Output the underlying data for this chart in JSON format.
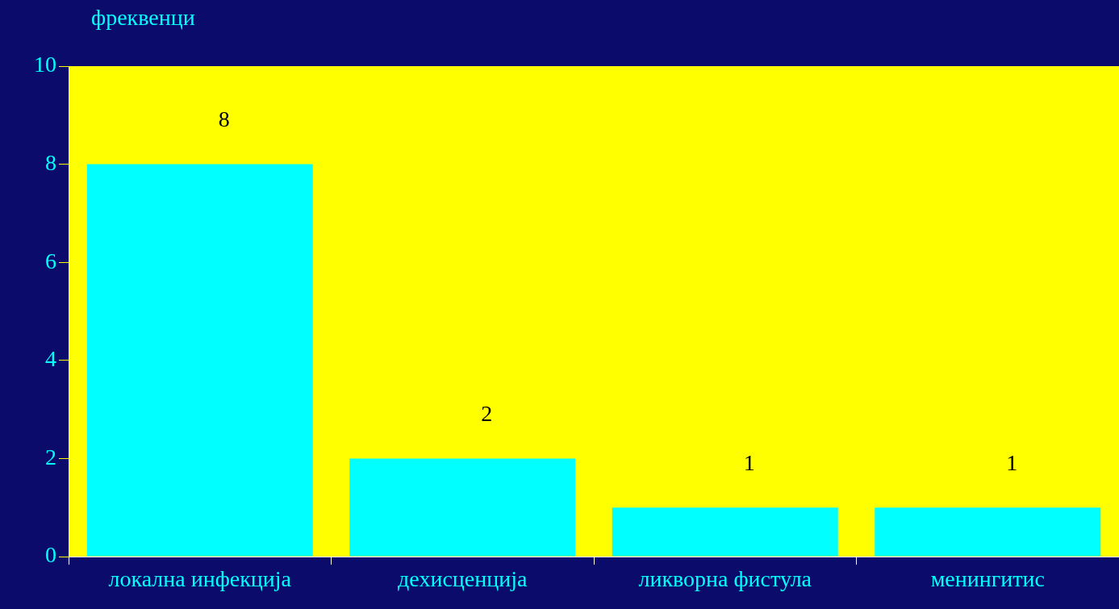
{
  "chart_data": {
    "type": "bar",
    "ylabel": "фреквенци",
    "categories": [
      "локална инфекција",
      "дехисценција",
      "ликворна фистула",
      "менингитис"
    ],
    "values": [
      8,
      2,
      1,
      1
    ],
    "color": "#00ffff",
    "ylim": [
      0,
      10
    ],
    "yticks": [
      0,
      2,
      4,
      6,
      8,
      10
    ],
    "grid": false,
    "data_labels": true
  }
}
